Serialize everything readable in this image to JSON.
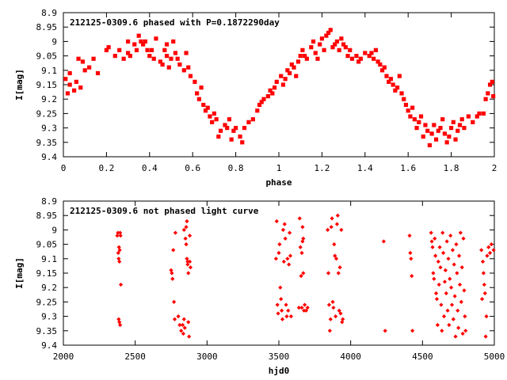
{
  "chart_data": [
    {
      "type": "scatter",
      "title": "212125-0309.6 phased with P=0.1872290day",
      "xlabel": "phase",
      "ylabel": "I[mag]",
      "xlim": [
        0,
        2
      ],
      "ylim": [
        9.4,
        8.9
      ],
      "y_inverted": true,
      "grid": false,
      "marker_color": "#ff0000",
      "marker": "filled-square-cross",
      "x_ticks": [
        "0",
        "0.2",
        "0.4",
        "0.6",
        "0.8",
        "1",
        "1.2",
        "1.4",
        "1.6",
        "1.8",
        "2"
      ],
      "y_ticks": [
        "8.9",
        "8.95",
        "9",
        "9.05",
        "9.1",
        "9.15",
        "9.2",
        "9.25",
        "9.3",
        "9.35",
        "9.4"
      ],
      "points": [
        [
          0.01,
          9.13
        ],
        [
          0.02,
          9.18
        ],
        [
          0.03,
          9.15
        ],
        [
          0.03,
          9.11
        ],
        [
          0.05,
          9.17
        ],
        [
          0.06,
          9.14
        ],
        [
          0.07,
          9.06
        ],
        [
          0.08,
          9.16
        ],
        [
          0.09,
          9.07
        ],
        [
          0.1,
          9.1
        ],
        [
          0.12,
          9.09
        ],
        [
          0.14,
          9.06
        ],
        [
          0.16,
          9.11
        ],
        [
          0.2,
          9.03
        ],
        [
          0.21,
          9.02
        ],
        [
          0.24,
          9.05
        ],
        [
          0.26,
          9.03
        ],
        [
          0.28,
          9.06
        ],
        [
          0.3,
          9.0
        ],
        [
          0.3,
          9.04
        ],
        [
          0.31,
          9.05
        ],
        [
          0.33,
          9.01
        ],
        [
          0.34,
          9.03
        ],
        [
          0.35,
          8.98
        ],
        [
          0.36,
          9.0
        ],
        [
          0.37,
          9.01
        ],
        [
          0.38,
          9.0
        ],
        [
          0.39,
          9.03
        ],
        [
          0.4,
          9.05
        ],
        [
          0.41,
          9.03
        ],
        [
          0.42,
          9.06
        ],
        [
          0.43,
          8.99
        ],
        [
          0.45,
          9.07
        ],
        [
          0.46,
          9.08
        ],
        [
          0.47,
          9.03
        ],
        [
          0.48,
          9.01
        ],
        [
          0.48,
          9.05
        ],
        [
          0.49,
          9.09
        ],
        [
          0.5,
          9.06
        ],
        [
          0.51,
          9.0
        ],
        [
          0.52,
          9.04
        ],
        [
          0.53,
          9.06
        ],
        [
          0.54,
          9.08
        ],
        [
          0.56,
          9.1
        ],
        [
          0.57,
          9.04
        ],
        [
          0.58,
          9.09
        ],
        [
          0.59,
          9.12
        ],
        [
          0.61,
          9.14
        ],
        [
          0.62,
          9.18
        ],
        [
          0.63,
          9.2
        ],
        [
          0.64,
          9.16
        ],
        [
          0.65,
          9.22
        ],
        [
          0.66,
          9.24
        ],
        [
          0.67,
          9.23
        ],
        [
          0.68,
          9.26
        ],
        [
          0.69,
          9.28
        ],
        [
          0.7,
          9.25
        ],
        [
          0.71,
          9.27
        ],
        [
          0.72,
          9.33
        ],
        [
          0.73,
          9.31
        ],
        [
          0.75,
          9.29
        ],
        [
          0.76,
          9.3
        ],
        [
          0.77,
          9.27
        ],
        [
          0.78,
          9.34
        ],
        [
          0.79,
          9.31
        ],
        [
          0.8,
          9.3
        ],
        [
          0.82,
          9.33
        ],
        [
          0.83,
          9.35
        ],
        [
          0.84,
          9.3
        ],
        [
          0.86,
          9.28
        ],
        [
          0.88,
          9.27
        ],
        [
          0.9,
          9.24
        ],
        [
          0.91,
          9.22
        ],
        [
          0.92,
          9.21
        ],
        [
          0.93,
          9.2
        ],
        [
          0.95,
          9.19
        ],
        [
          0.96,
          9.17
        ],
        [
          0.97,
          9.18
        ],
        [
          0.98,
          9.16
        ],
        [
          0.99,
          9.14
        ],
        [
          1.01,
          9.12
        ],
        [
          1.02,
          9.15
        ],
        [
          1.03,
          9.13
        ],
        [
          1.04,
          9.1
        ],
        [
          1.05,
          9.11
        ],
        [
          1.06,
          9.08
        ],
        [
          1.07,
          9.09
        ],
        [
          1.08,
          9.12
        ],
        [
          1.09,
          9.07
        ],
        [
          1.1,
          9.05
        ],
        [
          1.11,
          9.03
        ],
        [
          1.12,
          9.05
        ],
        [
          1.13,
          9.06
        ],
        [
          1.15,
          9.02
        ],
        [
          1.16,
          9.0
        ],
        [
          1.17,
          9.04
        ],
        [
          1.18,
          9.06
        ],
        [
          1.19,
          9.01
        ],
        [
          1.2,
          8.99
        ],
        [
          1.21,
          9.03
        ],
        [
          1.22,
          8.98
        ],
        [
          1.23,
          8.97
        ],
        [
          1.24,
          8.96
        ],
        [
          1.25,
          9.02
        ],
        [
          1.26,
          9.01
        ],
        [
          1.27,
          9.0
        ],
        [
          1.28,
          9.03
        ],
        [
          1.29,
          8.99
        ],
        [
          1.3,
          9.01
        ],
        [
          1.31,
          9.02
        ],
        [
          1.32,
          9.05
        ],
        [
          1.33,
          9.03
        ],
        [
          1.34,
          9.06
        ],
        [
          1.36,
          9.05
        ],
        [
          1.37,
          9.07
        ],
        [
          1.38,
          9.06
        ],
        [
          1.4,
          9.04
        ],
        [
          1.42,
          9.05
        ],
        [
          1.43,
          9.04
        ],
        [
          1.44,
          9.06
        ],
        [
          1.45,
          9.03
        ],
        [
          1.46,
          9.07
        ],
        [
          1.47,
          9.08
        ],
        [
          1.48,
          9.1
        ],
        [
          1.49,
          9.09
        ],
        [
          1.5,
          9.12
        ],
        [
          1.51,
          9.14
        ],
        [
          1.52,
          9.13
        ],
        [
          1.53,
          9.15
        ],
        [
          1.54,
          9.17
        ],
        [
          1.55,
          9.16
        ],
        [
          1.56,
          9.12
        ],
        [
          1.57,
          9.18
        ],
        [
          1.58,
          9.2
        ],
        [
          1.59,
          9.22
        ],
        [
          1.6,
          9.24
        ],
        [
          1.61,
          9.26
        ],
        [
          1.62,
          9.23
        ],
        [
          1.63,
          9.27
        ],
        [
          1.64,
          9.3
        ],
        [
          1.65,
          9.28
        ],
        [
          1.66,
          9.26
        ],
        [
          1.67,
          9.33
        ],
        [
          1.68,
          9.29
        ],
        [
          1.69,
          9.31
        ],
        [
          1.7,
          9.36
        ],
        [
          1.71,
          9.32
        ],
        [
          1.72,
          9.29
        ],
        [
          1.73,
          9.34
        ],
        [
          1.74,
          9.31
        ],
        [
          1.75,
          9.3
        ],
        [
          1.76,
          9.27
        ],
        [
          1.77,
          9.32
        ],
        [
          1.78,
          9.35
        ],
        [
          1.79,
          9.33
        ],
        [
          1.8,
          9.3
        ],
        [
          1.81,
          9.28
        ],
        [
          1.82,
          9.34
        ],
        [
          1.83,
          9.31
        ],
        [
          1.84,
          9.29
        ],
        [
          1.85,
          9.27
        ],
        [
          1.86,
          9.3
        ],
        [
          1.88,
          9.26
        ],
        [
          1.9,
          9.28
        ],
        [
          1.92,
          9.26
        ],
        [
          1.93,
          9.25
        ],
        [
          1.95,
          9.25
        ],
        [
          1.96,
          9.2
        ],
        [
          1.97,
          9.18
        ],
        [
          1.98,
          9.15
        ],
        [
          1.99,
          9.14
        ],
        [
          1.995,
          9.19
        ]
      ]
    },
    {
      "type": "scatter",
      "title": "212125-0309.6 not phased light curve",
      "xlabel": "hjd0",
      "ylabel": "I[mag]",
      "xlim": [
        2000,
        5000
      ],
      "ylim": [
        9.4,
        8.9
      ],
      "y_inverted": true,
      "grid": false,
      "marker_color": "#ff0000",
      "marker": "filled-diamond",
      "x_ticks": [
        "2000",
        "2500",
        "3000",
        "3500",
        "4000",
        "4500",
        "5000"
      ],
      "y_ticks": [
        "8.9",
        "8.95",
        "9",
        "9.05",
        "9.1",
        "9.15",
        "9.2",
        "9.25",
        "9.3",
        "9.35",
        "9.4"
      ],
      "points": [
        [
          2375,
          9.02
        ],
        [
          2380,
          9.01
        ],
        [
          2382,
          9.08
        ],
        [
          2385,
          9.1
        ],
        [
          2387,
          9.06
        ],
        [
          2390,
          9.11
        ],
        [
          2392,
          9.07
        ],
        [
          2395,
          9.01
        ],
        [
          2398,
          9.02
        ],
        [
          2400,
          9.19
        ],
        [
          2385,
          9.31
        ],
        [
          2390,
          9.32
        ],
        [
          2395,
          9.33
        ],
        [
          2750,
          9.14
        ],
        [
          2755,
          9.15
        ],
        [
          2760,
          9.17
        ],
        [
          2765,
          9.07
        ],
        [
          2770,
          9.25
        ],
        [
          2775,
          9.31
        ],
        [
          2780,
          9.01
        ],
        [
          2800,
          9.3
        ],
        [
          2810,
          9.33
        ],
        [
          2820,
          9.35
        ],
        [
          2830,
          9.33
        ],
        [
          2835,
          9.36
        ],
        [
          2840,
          9.31
        ],
        [
          2845,
          9.34
        ],
        [
          2850,
          9.03
        ],
        [
          2855,
          9.05
        ],
        [
          2860,
          9.1
        ],
        [
          2865,
          9.12
        ],
        [
          2870,
          9.32
        ],
        [
          2875,
          9.37
        ],
        [
          2880,
          9.11
        ],
        [
          2885,
          9.13
        ],
        [
          2855,
          8.99
        ],
        [
          2860,
          8.97
        ],
        [
          2865,
          9.11
        ],
        [
          2870,
          9.15
        ],
        [
          2840,
          9.0
        ],
        [
          2880,
          9.02
        ],
        [
          3480,
          9.1
        ],
        [
          3485,
          8.97
        ],
        [
          3490,
          9.26
        ],
        [
          3495,
          9.29
        ],
        [
          3500,
          9.08
        ],
        [
          3505,
          9.05
        ],
        [
          3510,
          9.2
        ],
        [
          3515,
          9.24
        ],
        [
          3520,
          9.28
        ],
        [
          3525,
          9.31
        ],
        [
          3530,
          9.0
        ],
        [
          3535,
          9.11
        ],
        [
          3540,
          8.98
        ],
        [
          3545,
          9.03
        ],
        [
          3550,
          9.26
        ],
        [
          3555,
          9.3
        ],
        [
          3560,
          9.1
        ],
        [
          3565,
          9.28
        ],
        [
          3570,
          9.12
        ],
        [
          3575,
          9.01
        ],
        [
          3580,
          9.09
        ],
        [
          3585,
          9.3
        ],
        [
          3640,
          9.27
        ],
        [
          3645,
          8.96
        ],
        [
          3650,
          9.06
        ],
        [
          3655,
          9.16
        ],
        [
          3660,
          9.27
        ],
        [
          3665,
          8.99
        ],
        [
          3670,
          9.03
        ],
        [
          3675,
          9.28
        ],
        [
          3680,
          9.26
        ],
        [
          3690,
          9.28
        ],
        [
          3700,
          9.27
        ],
        [
          3660,
          9.08
        ],
        [
          3665,
          9.04
        ],
        [
          3670,
          9.15
        ],
        [
          3840,
          9.0
        ],
        [
          3845,
          9.15
        ],
        [
          3850,
          9.26
        ],
        [
          3855,
          9.35
        ],
        [
          3860,
          9.31
        ],
        [
          3865,
          8.99
        ],
        [
          3870,
          8.96
        ],
        [
          3875,
          9.25
        ],
        [
          3880,
          9.27
        ],
        [
          3885,
          9.05
        ],
        [
          3890,
          9.09
        ],
        [
          3895,
          9.3
        ],
        [
          3900,
          9.1
        ],
        [
          3905,
          8.98
        ],
        [
          3910,
          8.95
        ],
        [
          3915,
          9.15
        ],
        [
          3920,
          9.28
        ],
        [
          3925,
          9.13
        ],
        [
          3930,
          9.29
        ],
        [
          3935,
          9.0
        ],
        [
          3940,
          9.32
        ],
        [
          3945,
          9.31
        ],
        [
          4230,
          9.04
        ],
        [
          4240,
          9.35
        ],
        [
          4410,
          9.02
        ],
        [
          4415,
          9.08
        ],
        [
          4420,
          9.1
        ],
        [
          4425,
          9.16
        ],
        [
          4430,
          9.35
        ],
        [
          4560,
          9.01
        ],
        [
          4565,
          9.04
        ],
        [
          4570,
          9.06
        ],
        [
          4575,
          9.15
        ],
        [
          4580,
          9.17
        ],
        [
          4585,
          9.03
        ],
        [
          4590,
          9.09
        ],
        [
          4595,
          9.22
        ],
        [
          4600,
          9.24
        ],
        [
          4605,
          9.33
        ],
        [
          4610,
          9.11
        ],
        [
          4615,
          9.19
        ],
        [
          4620,
          9.06
        ],
        [
          4625,
          9.13
        ],
        [
          4630,
          9.26
        ],
        [
          4635,
          9.35
        ],
        [
          4640,
          9.01
        ],
        [
          4645,
          9.08
        ],
        [
          4650,
          9.3
        ],
        [
          4655,
          9.18
        ],
        [
          4660,
          9.14
        ],
        [
          4665,
          9.22
        ],
        [
          4670,
          9.04
        ],
        [
          4675,
          9.28
        ],
        [
          4680,
          9.1
        ],
        [
          4685,
          9.33
        ],
        [
          4690,
          9.17
        ],
        [
          4695,
          9.02
        ],
        [
          4700,
          9.2
        ],
        [
          4705,
          9.26
        ],
        [
          4710,
          9.07
        ],
        [
          4715,
          9.31
        ],
        [
          4720,
          9.12
        ],
        [
          4725,
          9.23
        ],
        [
          4730,
          9.37
        ],
        [
          4735,
          9.05
        ],
        [
          4740,
          9.15
        ],
        [
          4745,
          9.28
        ],
        [
          4750,
          9.34
        ],
        [
          4755,
          9.09
        ],
        [
          4760,
          9.19
        ],
        [
          4765,
          9.01
        ],
        [
          4770,
          9.25
        ],
        [
          4775,
          9.13
        ],
        [
          4780,
          9.36
        ],
        [
          4785,
          9.03
        ],
        [
          4790,
          9.21
        ],
        [
          4795,
          9.3
        ],
        [
          4800,
          9.35
        ],
        [
          4910,
          9.07
        ],
        [
          4915,
          9.24
        ],
        [
          4920,
          9.11
        ],
        [
          4925,
          9.15
        ],
        [
          4930,
          9.19
        ],
        [
          4935,
          9.22
        ],
        [
          4940,
          9.37
        ],
        [
          4945,
          9.3
        ],
        [
          4950,
          9.09
        ],
        [
          4960,
          9.06
        ],
        [
          4970,
          9.08
        ],
        [
          4980,
          9.05
        ],
        [
          4995,
          9.07
        ]
      ]
    }
  ]
}
